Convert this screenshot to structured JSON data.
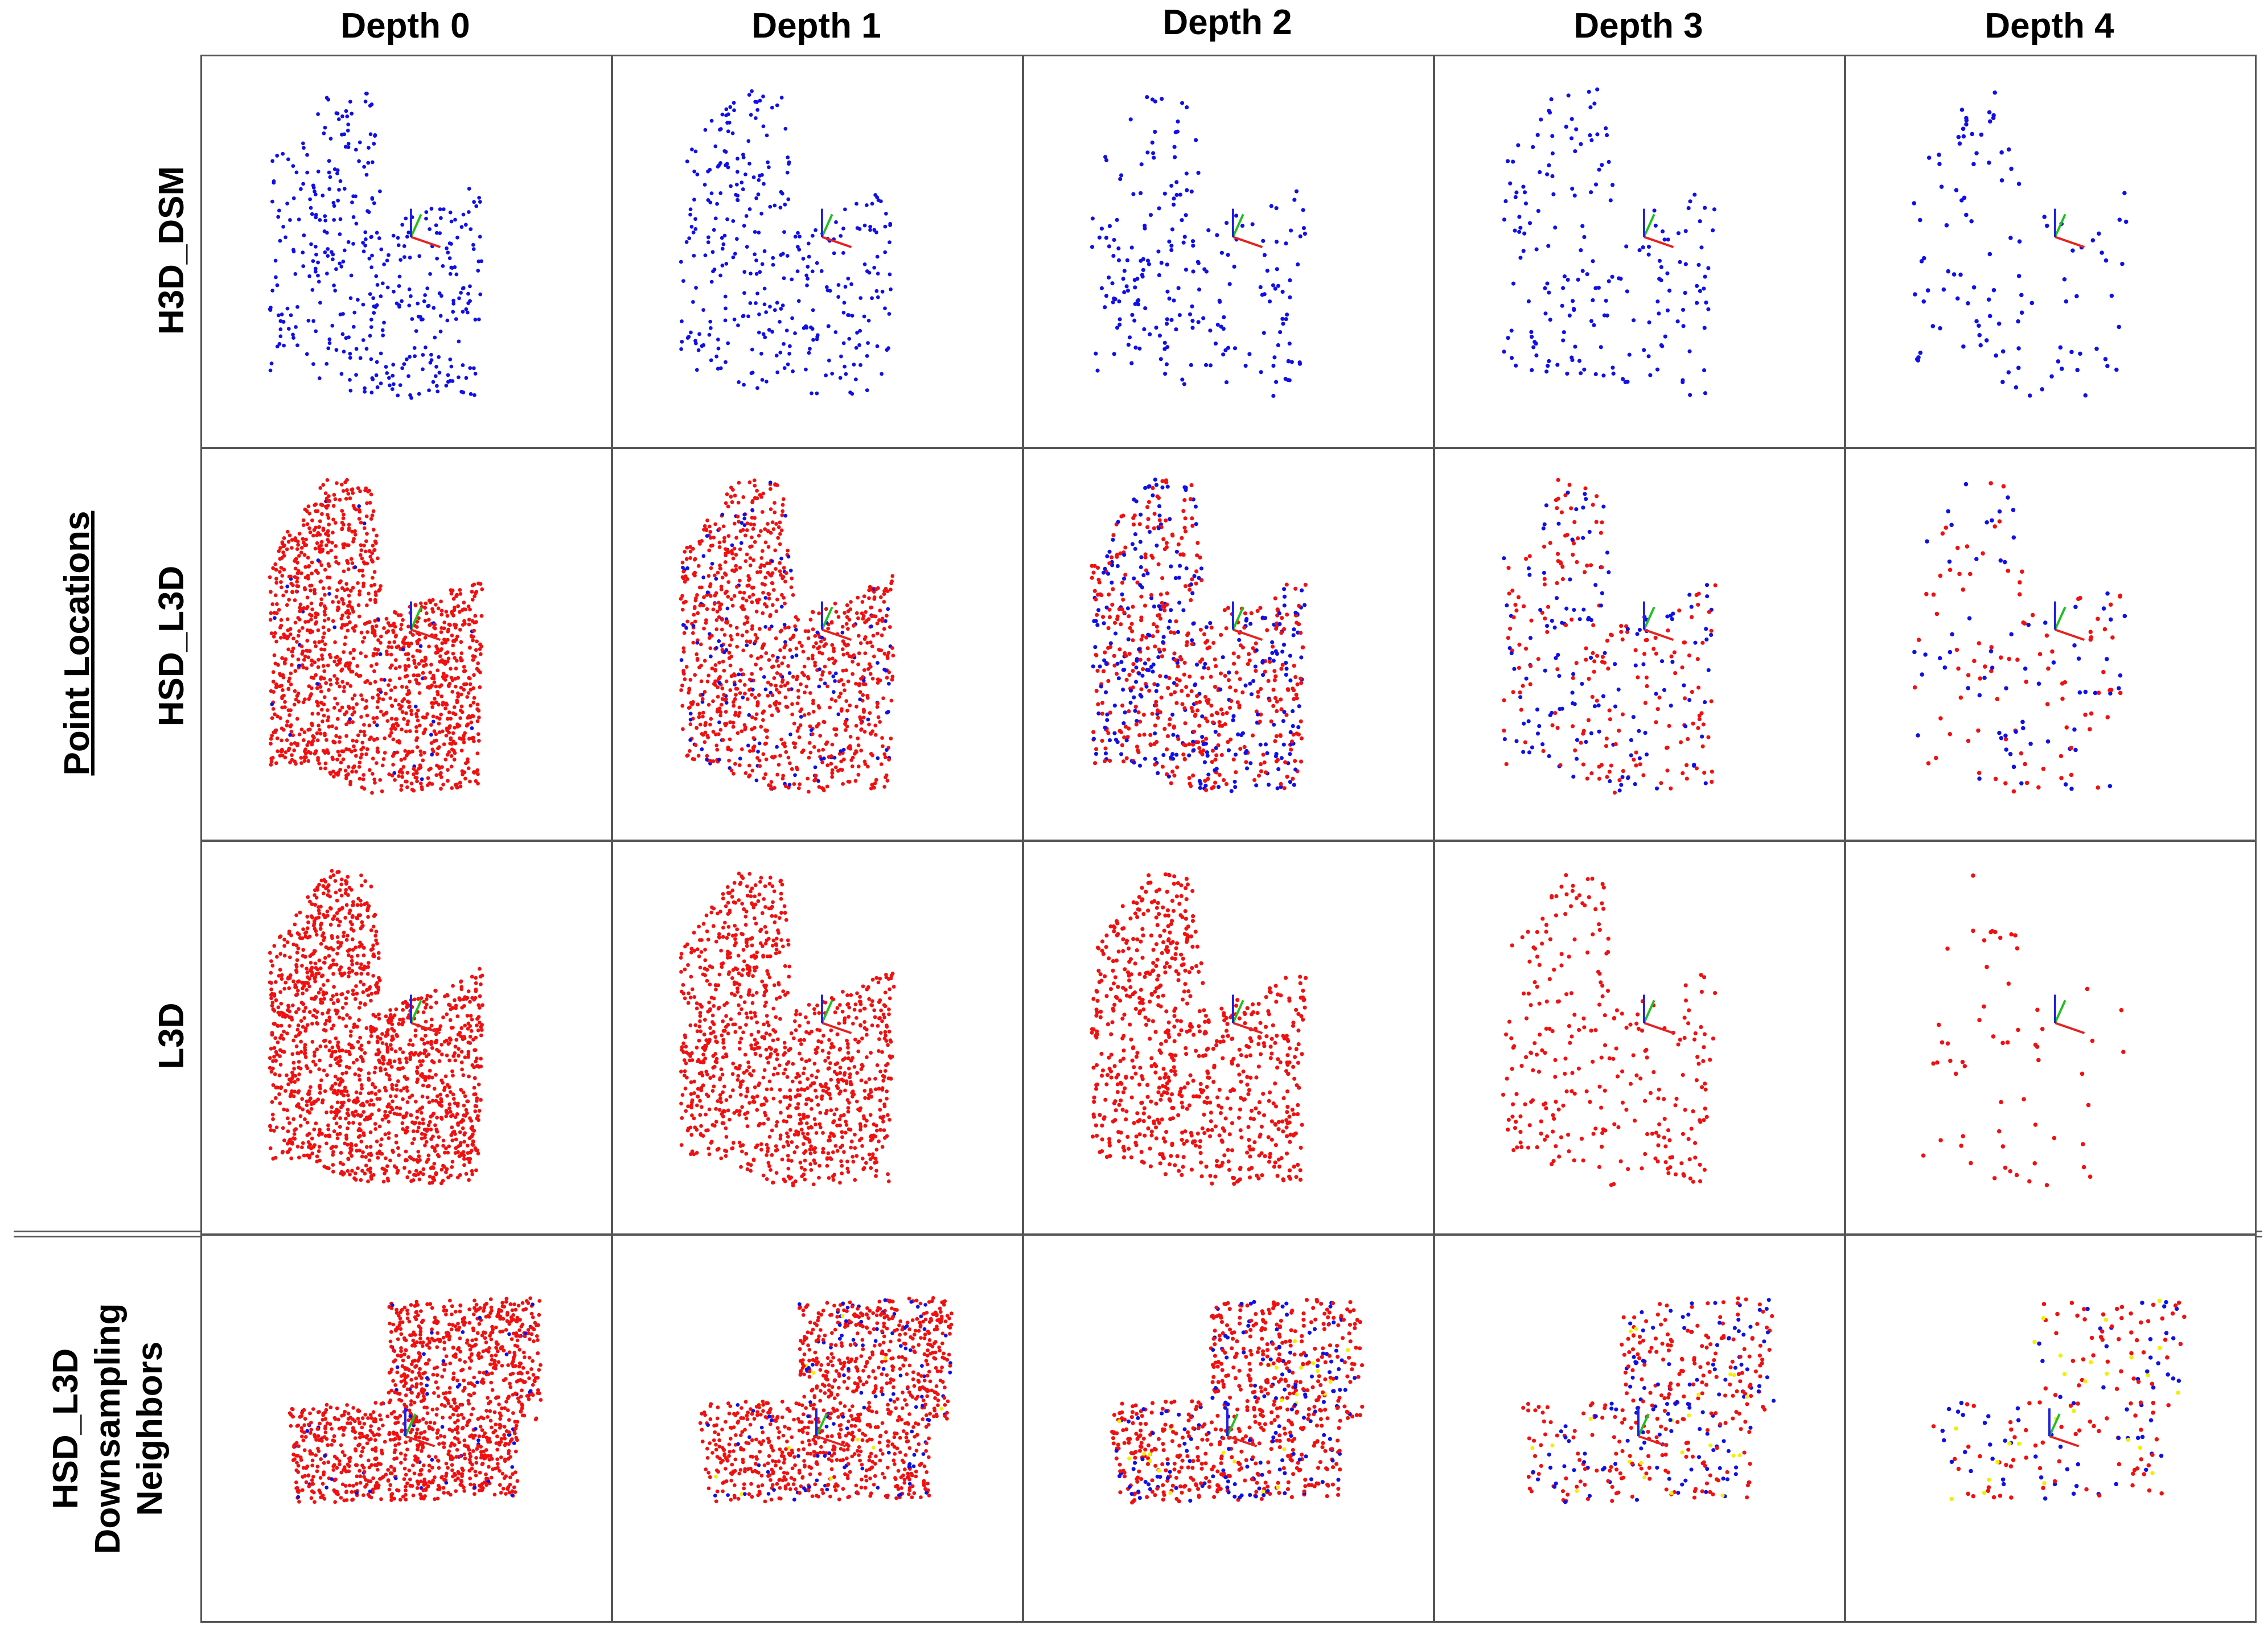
{
  "columns": [
    "Depth 0",
    "Depth 1",
    "Depth 2",
    "Depth 3",
    "Depth 4"
  ],
  "group_label": "Point Locations",
  "rows": [
    {
      "label": "H3D_DSM"
    },
    {
      "label": "HSD_L3D"
    },
    {
      "label": "L3D"
    },
    {
      "label_line1": "HSD_L3D",
      "label_line2": "Downsampling",
      "label_line3": "Neighbors"
    }
  ],
  "colors": {
    "blue": "#1010e6",
    "red": "#f01010",
    "yellow": "#f0f000",
    "green": "#10c010",
    "axis_red": "#e82020",
    "axis_green": "#20c020",
    "axis_blue": "#2020e0"
  },
  "density": {
    "H3D_DSM": [
      400,
      340,
      220,
      190,
      110
    ],
    "HSD_L3D": [
      1400,
      1100,
      800,
      330,
      160
    ],
    "L3D": [
      1500,
      1100,
      780,
      280,
      60
    ],
    "Neighbors": [
      1300,
      1100,
      800,
      420,
      200
    ]
  },
  "blue_fraction": {
    "HSD_L3D": [
      0.03,
      0.12,
      0.38,
      0.42,
      0.4
    ],
    "Neighbors": [
      0.05,
      0.1,
      0.2,
      0.32,
      0.35
    ]
  },
  "yellow_fraction": [
    0.0,
    0.01,
    0.03,
    0.04,
    0.15
  ]
}
